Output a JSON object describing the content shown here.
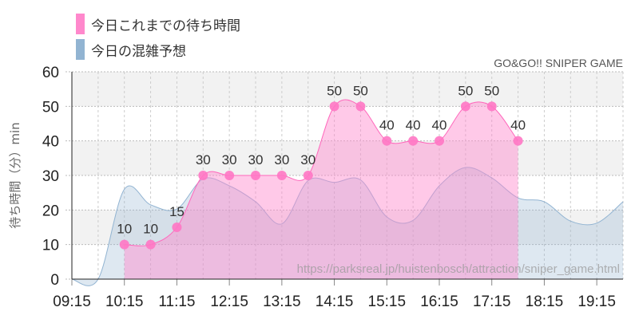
{
  "chart_data": {
    "type": "area",
    "title": "GO&GO!! SNIPER GAME",
    "watermark": "https://parksreal.jp/huistenbosch/attraction/sniper_game.html",
    "ylabel": "待ち時間（分）min",
    "xlabel": "",
    "ylim": [
      0,
      60
    ],
    "yticks": [
      0,
      10,
      20,
      30,
      40,
      50,
      60
    ],
    "xlim": [
      "09:15",
      "19:45"
    ],
    "xticks": [
      "09:15",
      "10:15",
      "11:15",
      "12:15",
      "13:15",
      "14:15",
      "15:15",
      "16:15",
      "17:15",
      "18:15",
      "19:15"
    ],
    "grid": true,
    "legend_position": "top-left",
    "series": [
      {
        "name": "今日これまでの待ち時間",
        "color": "#ff88cc",
        "show_labels": true,
        "x": [
          "10:15",
          "10:45",
          "11:15",
          "11:45",
          "12:15",
          "12:45",
          "13:15",
          "13:45",
          "14:15",
          "14:45",
          "15:15",
          "15:45",
          "16:15",
          "16:45",
          "17:15",
          "17:45"
        ],
        "values": [
          10,
          10,
          15,
          30,
          30,
          30,
          30,
          30,
          50,
          50,
          40,
          40,
          40,
          50,
          50,
          40
        ]
      },
      {
        "name": "今日の混雑予想",
        "color": "#92b4d2",
        "show_labels": false,
        "x": [
          "09:15",
          "09:45",
          "10:15",
          "10:45",
          "11:15",
          "11:45",
          "12:15",
          "12:45",
          "13:15",
          "13:45",
          "14:15",
          "14:45",
          "15:15",
          "15:45",
          "16:15",
          "16:45",
          "17:15",
          "17:45",
          "18:15",
          "18:45",
          "19:15",
          "19:45"
        ],
        "values": [
          0,
          0,
          26,
          21.5,
          20.3,
          29,
          27,
          22.4,
          16,
          28.5,
          28,
          28.7,
          18,
          17,
          27,
          32.3,
          29.3,
          23.5,
          22.4,
          16.8,
          16.2,
          22.4
        ]
      }
    ]
  }
}
